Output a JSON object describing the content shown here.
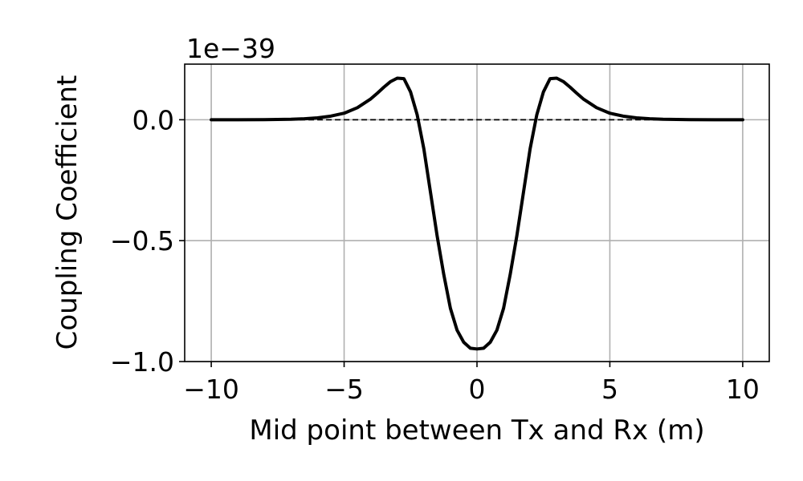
{
  "chart_data": {
    "type": "line",
    "xlabel": "Mid point between Tx and Rx (m)",
    "ylabel": "Coupling Coefficient",
    "y_offset_label": "1e−39",
    "xlim": [
      -11,
      11
    ],
    "ylim": [
      -1.0,
      0.23
    ],
    "grid": true,
    "x_ticks": [
      -10,
      -5,
      0,
      5,
      10
    ],
    "x_tick_labels": [
      "−10",
      "−5",
      "0",
      "5",
      "10"
    ],
    "y_ticks": [
      0.0,
      -0.5,
      -1.0
    ],
    "y_tick_labels": [
      "0.0",
      "−0.5",
      "−1.0"
    ],
    "reference_line": {
      "y": 0.0,
      "x_range": [
        -10,
        10
      ],
      "style": "dashed",
      "color": "#000000"
    },
    "series": [
      {
        "color": "#000000",
        "x": [
          -10,
          -9,
          -8,
          -7,
          -6.5,
          -6,
          -5.5,
          -5,
          -4.5,
          -4,
          -3.75,
          -3.5,
          -3.25,
          -3,
          -2.75,
          -2.5,
          -2.25,
          -2,
          -1.75,
          -1.5,
          -1.25,
          -1,
          -0.75,
          -0.5,
          -0.25,
          0,
          0.25,
          0.5,
          0.75,
          1,
          1.25,
          1.5,
          1.75,
          2,
          2.25,
          2.5,
          2.75,
          3,
          3.25,
          3.5,
          3.75,
          4,
          4.5,
          5,
          5.5,
          6,
          6.5,
          7,
          8,
          9,
          10
        ],
        "y": [
          0.0,
          0.0,
          0.0005,
          0.002,
          0.004,
          0.008,
          0.015,
          0.027,
          0.05,
          0.086,
          0.11,
          0.135,
          0.158,
          0.172,
          0.17,
          0.115,
          0.02,
          -0.12,
          -0.3,
          -0.48,
          -0.64,
          -0.78,
          -0.87,
          -0.92,
          -0.945,
          -0.948,
          -0.945,
          -0.92,
          -0.87,
          -0.78,
          -0.64,
          -0.48,
          -0.3,
          -0.12,
          0.02,
          0.115,
          0.17,
          0.172,
          0.158,
          0.135,
          0.11,
          0.086,
          0.05,
          0.027,
          0.015,
          0.008,
          0.004,
          0.002,
          0.0005,
          0.0,
          0.0
        ]
      }
    ]
  }
}
